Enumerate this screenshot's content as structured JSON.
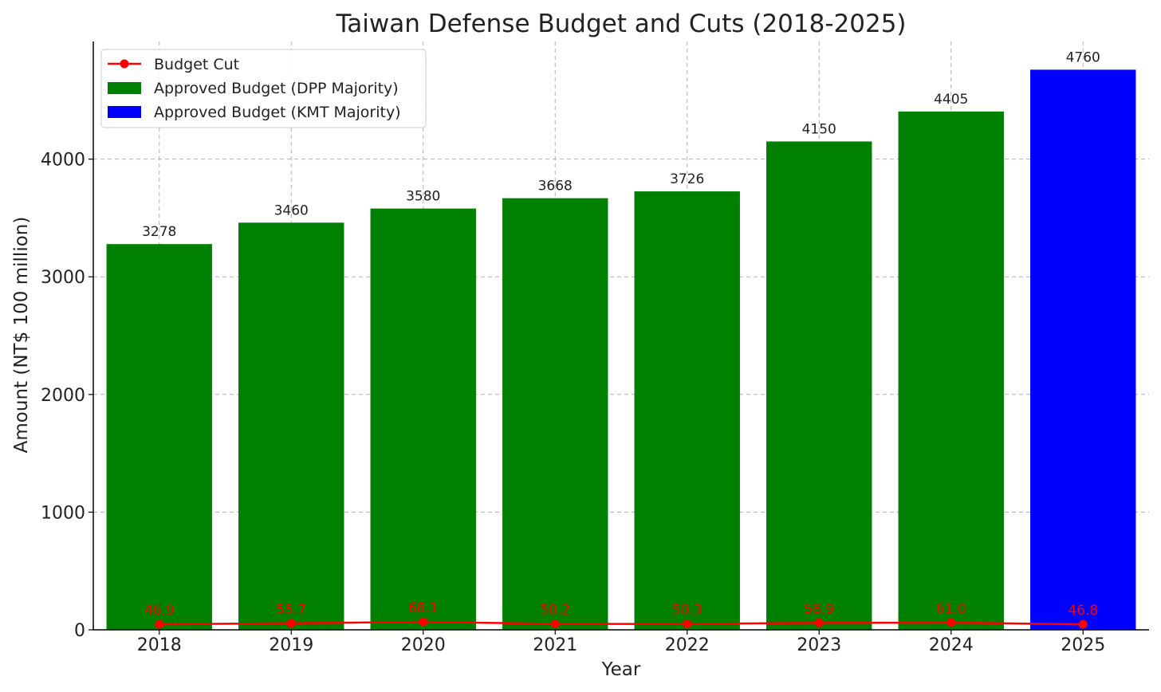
{
  "chart_data": {
    "type": "bar",
    "title": "Taiwan Defense Budget and Cuts (2018-2025)",
    "xlabel": "Year",
    "ylabel": "Amount (NT$ 100 million)",
    "categories": [
      "2018",
      "2019",
      "2020",
      "2021",
      "2022",
      "2023",
      "2024",
      "2025"
    ],
    "ylim": [
      0,
      5000
    ],
    "yticks": [
      0,
      1000,
      2000,
      3000,
      4000
    ],
    "grid": true,
    "legend_position": "top-left",
    "series": [
      {
        "name": "Approved Budget (DPP Majority)",
        "type": "bar",
        "color": "#008000",
        "values": [
          3278,
          3460,
          3580,
          3668,
          3726,
          4150,
          4405,
          null
        ],
        "labels": [
          "3278",
          "3460",
          "3580",
          "3668",
          "3726",
          "4150",
          "4405",
          ""
        ]
      },
      {
        "name": "Approved Budget (KMT Majority)",
        "type": "bar",
        "color": "#0000ff",
        "values": [
          null,
          null,
          null,
          null,
          null,
          null,
          null,
          4760
        ],
        "labels": [
          "",
          "",
          "",
          "",
          "",
          "",
          "",
          "4760"
        ]
      },
      {
        "name": "Budget Cut",
        "type": "line",
        "color": "#ff0000",
        "values": [
          46.9,
          55.7,
          68.1,
          50.2,
          50.3,
          58.9,
          61.0,
          46.8
        ],
        "labels": [
          "46.9",
          "55.7",
          "68.1",
          "50.2",
          "50.3",
          "58.9",
          "61.0",
          "46.8"
        ]
      }
    ],
    "legend_order": [
      "Budget Cut",
      "Approved Budget (DPP Majority)",
      "Approved Budget (KMT Majority)"
    ]
  }
}
